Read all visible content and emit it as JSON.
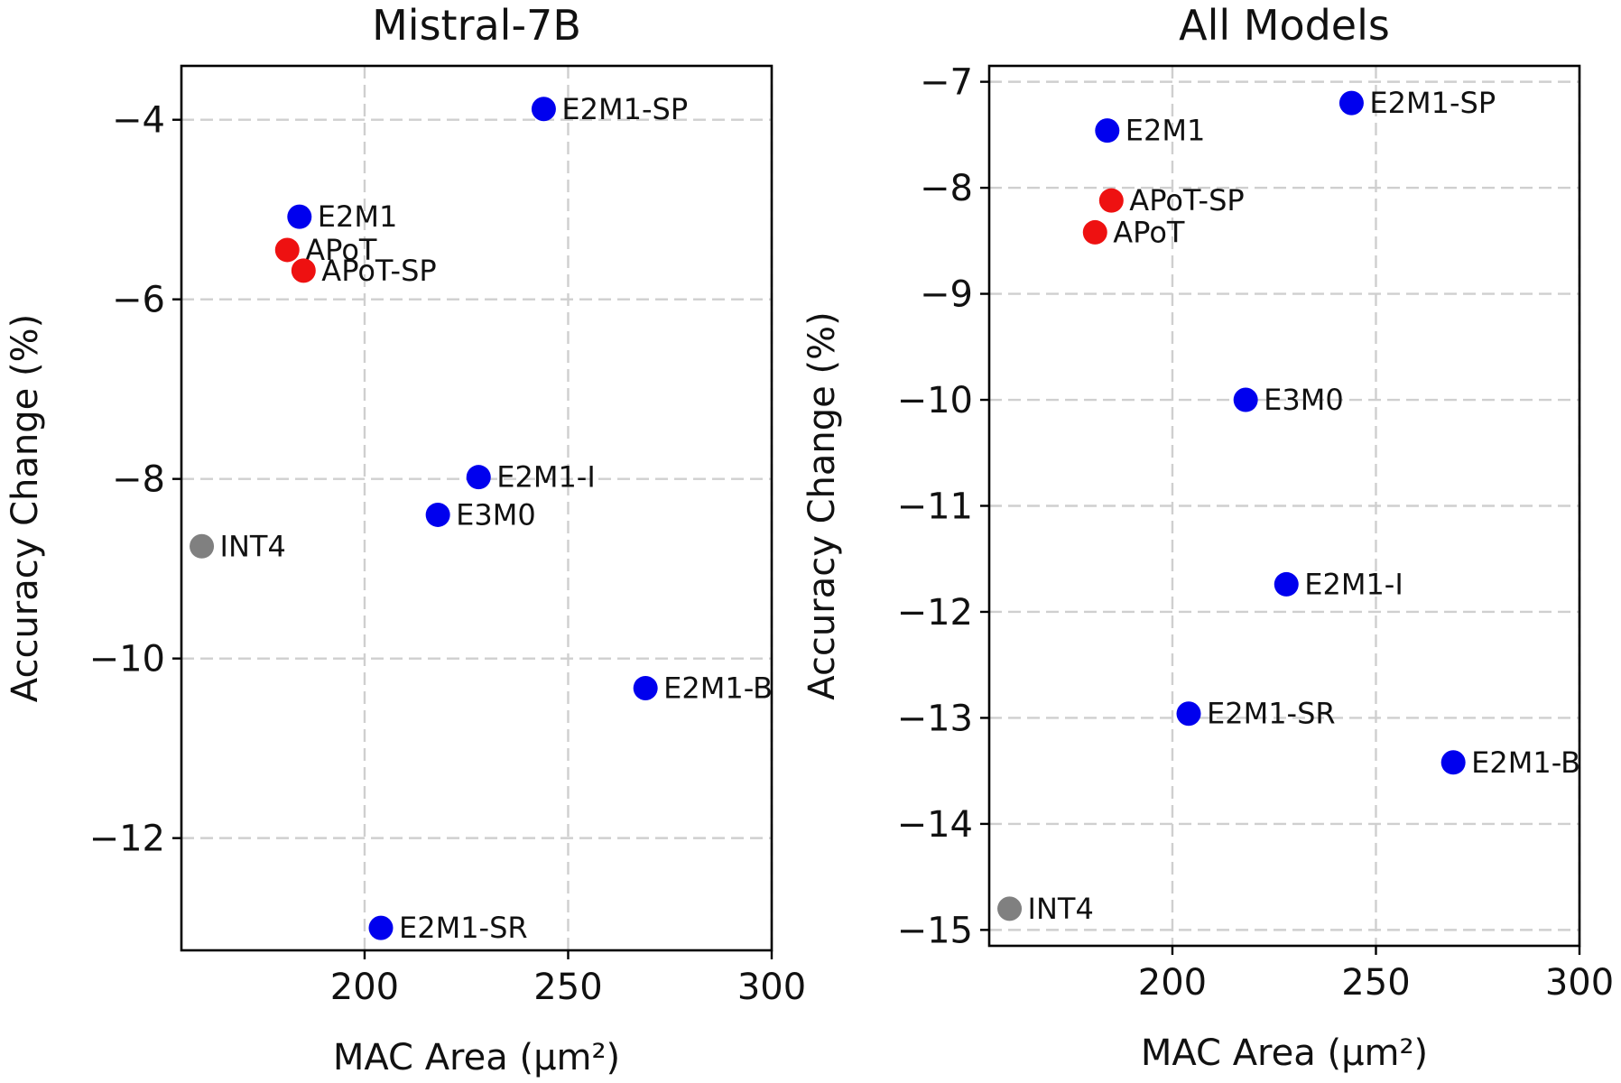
{
  "chart_data": [
    {
      "type": "scatter",
      "title": "Mistral-7B",
      "xlabel": "MAC Area (μm²)",
      "ylabel": "Accuracy Change (%)",
      "xlim": [
        155,
        300
      ],
      "ylim": [
        -13.25,
        -3.4
      ],
      "xticks": [
        200,
        250,
        300
      ],
      "yticks": [
        -4,
        -6,
        -8,
        -10,
        -12
      ],
      "tick_labels_y": [
        "−4",
        "−6",
        "−8",
        "−10",
        "−12"
      ],
      "points": [
        {
          "label": "E2M1-SP",
          "x": 244,
          "y": -3.88,
          "color": "#0000ee"
        },
        {
          "label": "E2M1",
          "x": 184,
          "y": -5.08,
          "color": "#0000ee"
        },
        {
          "label": "APoT",
          "x": 181,
          "y": -5.45,
          "color": "#ee1111"
        },
        {
          "label": "APoT-SP",
          "x": 185,
          "y": -5.68,
          "color": "#ee1111"
        },
        {
          "label": "E2M1-I",
          "x": 228,
          "y": -7.98,
          "color": "#0000ee"
        },
        {
          "label": "E3M0",
          "x": 218,
          "y": -8.4,
          "color": "#0000ee"
        },
        {
          "label": "INT4",
          "x": 160,
          "y": -8.75,
          "color": "#808080"
        },
        {
          "label": "E2M1-B",
          "x": 269,
          "y": -10.33,
          "color": "#0000ee"
        },
        {
          "label": "E2M1-SR",
          "x": 204,
          "y": -13.0,
          "color": "#0000ee"
        }
      ]
    },
    {
      "type": "scatter",
      "title": "All Models",
      "xlabel": "MAC Area (μm²)",
      "ylabel": "Accuracy Change (%)",
      "xlim": [
        155,
        300
      ],
      "ylim": [
        -15.15,
        -6.85
      ],
      "xticks": [
        200,
        250,
        300
      ],
      "yticks": [
        -7,
        -8,
        -9,
        -10,
        -11,
        -12,
        -13,
        -14,
        -15
      ],
      "tick_labels_y": [
        "−7",
        "−8",
        "−9",
        "−10",
        "−11",
        "−12",
        "−13",
        "−14",
        "−15"
      ],
      "points": [
        {
          "label": "E2M1-SP",
          "x": 244,
          "y": -7.2,
          "color": "#0000ee"
        },
        {
          "label": "E2M1",
          "x": 184,
          "y": -7.46,
          "color": "#0000ee"
        },
        {
          "label": "APoT-SP",
          "x": 185,
          "y": -8.12,
          "color": "#ee1111"
        },
        {
          "label": "APoT",
          "x": 181,
          "y": -8.42,
          "color": "#ee1111"
        },
        {
          "label": "E3M0",
          "x": 218,
          "y": -10.0,
          "color": "#0000ee"
        },
        {
          "label": "E2M1-I",
          "x": 228,
          "y": -11.74,
          "color": "#0000ee"
        },
        {
          "label": "E2M1-SR",
          "x": 204,
          "y": -12.96,
          "color": "#0000ee"
        },
        {
          "label": "E2M1-B",
          "x": 269,
          "y": -13.42,
          "color": "#0000ee"
        },
        {
          "label": "INT4",
          "x": 160,
          "y": -14.8,
          "color": "#808080"
        }
      ]
    }
  ]
}
